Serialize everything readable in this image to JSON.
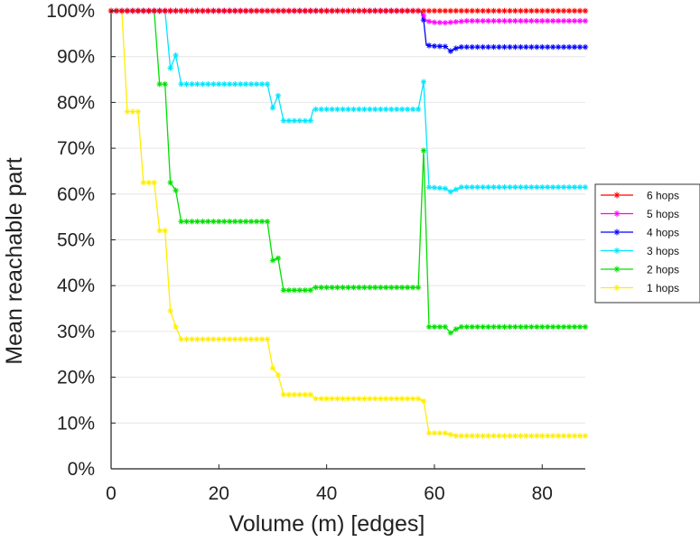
{
  "chart_data": {
    "type": "line",
    "xlabel": "Volume (m) [edges]",
    "ylabel": "Mean reachable part",
    "xlim": [
      0,
      88
    ],
    "ylim": [
      0,
      100
    ],
    "xticks": [
      0,
      20,
      40,
      60,
      80
    ],
    "yticks": [
      0,
      10,
      20,
      30,
      40,
      50,
      60,
      70,
      80,
      90,
      100
    ],
    "xtick_labels": [
      "0",
      "20",
      "40",
      "60",
      "80"
    ],
    "ytick_labels": [
      "0%",
      "10%",
      "20%",
      "30%",
      "40%",
      "50%",
      "60%",
      "70%",
      "80%",
      "90%",
      "100%"
    ],
    "grid": "horizontal",
    "legend_position": "right",
    "series": [
      {
        "name": "6 hops",
        "color": "#ff0000",
        "points": [
          [
            0,
            100
          ],
          [
            88,
            100
          ]
        ]
      },
      {
        "name": "5 hops",
        "color": "#ff00ff",
        "points": [
          [
            0,
            100
          ],
          [
            57.5,
            100
          ],
          [
            58,
            99
          ],
          [
            58.5,
            97.8
          ],
          [
            60,
            97.5
          ],
          [
            62,
            97.4
          ],
          [
            64,
            97.6
          ],
          [
            66,
            97.8
          ],
          [
            88,
            97.8
          ]
        ]
      },
      {
        "name": "4 hops",
        "color": "#0000ff",
        "points": [
          [
            0,
            100
          ],
          [
            57.5,
            100
          ],
          [
            58,
            98
          ],
          [
            58.5,
            92.5
          ],
          [
            60,
            92.3
          ],
          [
            62,
            92.2
          ],
          [
            63,
            91.2
          ],
          [
            64,
            91.8
          ],
          [
            65,
            92.1
          ],
          [
            88,
            92.1
          ]
        ]
      },
      {
        "name": "3 hops",
        "color": "#00e5ff",
        "points": [
          [
            0,
            100
          ],
          [
            10,
            100
          ],
          [
            11,
            87.5
          ],
          [
            12,
            90.3
          ],
          [
            13,
            84
          ],
          [
            29,
            84
          ],
          [
            30,
            78.8
          ],
          [
            31,
            81.5
          ],
          [
            32,
            76
          ],
          [
            37,
            76
          ],
          [
            37.5,
            78.5
          ],
          [
            57,
            78.5
          ],
          [
            58,
            84.5
          ],
          [
            58.5,
            73
          ],
          [
            59,
            61.5
          ],
          [
            62,
            61.2
          ],
          [
            63,
            60.5
          ],
          [
            64,
            61
          ],
          [
            65,
            61.5
          ],
          [
            88,
            61.5
          ]
        ]
      },
      {
        "name": "2 hops",
        "color": "#00e000",
        "points": [
          [
            0,
            100
          ],
          [
            8,
            100
          ],
          [
            9,
            84
          ],
          [
            10,
            84
          ],
          [
            11,
            62.5
          ],
          [
            12,
            60.8
          ],
          [
            13,
            54
          ],
          [
            29,
            54
          ],
          [
            30,
            45.5
          ],
          [
            31,
            46
          ],
          [
            32,
            39
          ],
          [
            37,
            39
          ],
          [
            37.5,
            39.6
          ],
          [
            57,
            39.6
          ],
          [
            58,
            69.5
          ],
          [
            59,
            31
          ],
          [
            62,
            31
          ],
          [
            63,
            29.7
          ],
          [
            64,
            30.5
          ],
          [
            65,
            31
          ],
          [
            88,
            31
          ]
        ]
      },
      {
        "name": "1 hops",
        "color": "#ffee00",
        "points": [
          [
            0,
            100
          ],
          [
            2,
            100
          ],
          [
            3,
            78
          ],
          [
            5,
            78
          ],
          [
            6,
            62.5
          ],
          [
            8,
            62.5
          ],
          [
            9,
            52
          ],
          [
            10,
            52
          ],
          [
            11,
            34.5
          ],
          [
            12,
            31
          ],
          [
            13,
            28.3
          ],
          [
            29,
            28.3
          ],
          [
            30,
            22
          ],
          [
            31,
            20.5
          ],
          [
            32,
            16.2
          ],
          [
            37,
            16.2
          ],
          [
            38,
            15.3
          ],
          [
            57,
            15.3
          ],
          [
            58,
            14.8
          ],
          [
            59,
            7.8
          ],
          [
            62,
            7.8
          ],
          [
            64,
            7.2
          ],
          [
            88,
            7.2
          ]
        ]
      }
    ]
  }
}
